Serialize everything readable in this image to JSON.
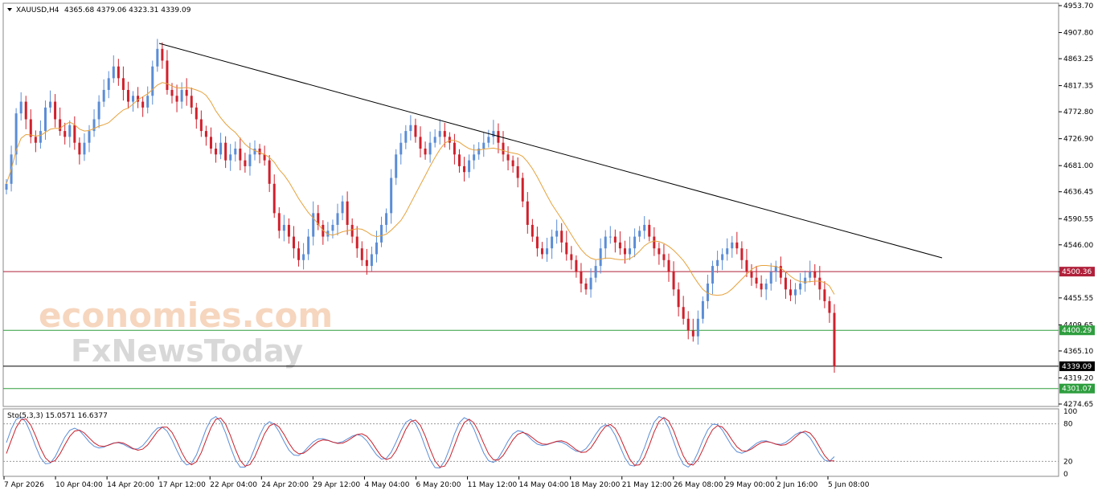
{
  "chart_data": {
    "type": "candlestick",
    "symbol_header": "XAUUSD,H4",
    "ohlc_header": "4365.68 4379.06 4323.31 4339.09",
    "price_axis": {
      "range": [
        4274.65,
        4953.7
      ],
      "tick_labels": [
        "4953.70",
        "4907.80",
        "4863.25",
        "4817.35",
        "4772.80",
        "4726.90",
        "4681.00",
        "4636.45",
        "4590.55",
        "4546.00",
        "4500.10",
        "4455.55",
        "4409.65",
        "4365.10",
        "4319.20",
        "4274.65"
      ]
    },
    "time_axis_labels": [
      "7 Apr 2026",
      "10 Apr 04:00",
      "14 Apr 20:00",
      "17 Apr 12:00",
      "22 Apr 04:00",
      "24 Apr 20:00",
      "29 Apr 12:00",
      "4 May 04:00",
      "6 May 20:00",
      "11 May 12:00",
      "14 May 04:00",
      "18 May 20:00",
      "21 May 12:00",
      "26 May 08:00",
      "29 May 00:00",
      "2 Jun 16:00",
      "5 Jun 08:00"
    ],
    "close_series": [
      4650,
      4700,
      4770,
      4790,
      4760,
      4730,
      4720,
      4740,
      4780,
      4790,
      4760,
      4740,
      4730,
      4750,
      4720,
      4700,
      4720,
      4740,
      4760,
      4790,
      4810,
      4830,
      4850,
      4830,
      4810,
      4790,
      4800,
      4790,
      4780,
      4800,
      4850,
      4880,
      4860,
      4810,
      4800,
      4790,
      4810,
      4800,
      4780,
      4760,
      4740,
      4730,
      4710,
      4700,
      4720,
      4690,
      4700,
      4710,
      4690,
      4680,
      4700,
      4710,
      4700,
      4690,
      4650,
      4600,
      4570,
      4580,
      4560,
      4540,
      4520,
      4530,
      4560,
      4600,
      4580,
      4560,
      4570,
      4580,
      4600,
      4620,
      4580,
      4560,
      4540,
      4520,
      4510,
      4530,
      4550,
      4580,
      4600,
      4660,
      4700,
      4720,
      4740,
      4750,
      4730,
      4710,
      4700,
      4720,
      4730,
      4740,
      4730,
      4720,
      4700,
      4680,
      4670,
      4690,
      4700,
      4710,
      4720,
      4730,
      4740,
      4720,
      4700,
      4690,
      4680,
      4660,
      4620,
      4580,
      4560,
      4540,
      4530,
      4540,
      4560,
      4570,
      4550,
      4530,
      4520,
      4500,
      4480,
      4470,
      4490,
      4510,
      4540,
      4560,
      4560,
      4550,
      4540,
      4530,
      4540,
      4560,
      4570,
      4580,
      4560,
      4540,
      4530,
      4520,
      4500,
      4470,
      4440,
      4420,
      4400,
      4390,
      4420,
      4450,
      4480,
      4510,
      4520,
      4530,
      4540,
      4550,
      4540,
      4520,
      4500,
      4490,
      4480,
      4470,
      4480,
      4500,
      4510,
      4490,
      4470,
      4460,
      4470,
      4480,
      4490,
      4500,
      4490,
      4470,
      4450,
      4430,
      4339.09
    ],
    "ma_color": "#e6a23c",
    "bull_color": "#5b8dd6",
    "bear_color": "#d0202c",
    "horizontal_levels": [
      {
        "value": "4500.36",
        "color": "#b0203a"
      },
      {
        "value": "4400.29",
        "color": "#2e9e3e"
      },
      {
        "value": "4339.09",
        "color": "#000000"
      },
      {
        "value": "4301.07",
        "color": "#2e9e3e"
      }
    ],
    "trendline_color": "#000000",
    "stochastic": {
      "label": "Sto(5,3,3) 15.0571 16.6377",
      "range": [
        0,
        100
      ],
      "tick_labels": [
        "100",
        "80",
        "20",
        "0"
      ],
      "main_color": "#5b8dd6",
      "signal_color": "#c8202c"
    },
    "watermark": "economies.com FxNewsToday"
  }
}
